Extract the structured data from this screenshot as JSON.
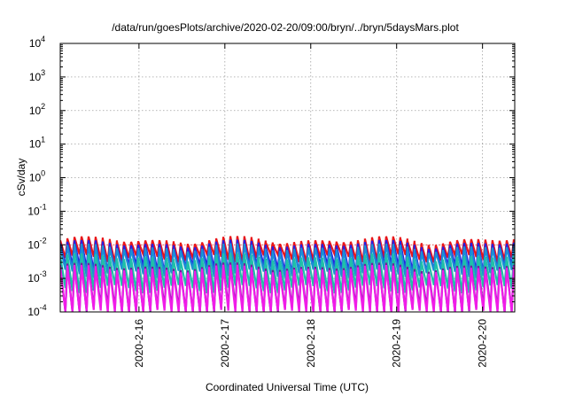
{
  "chart_data": {
    "type": "line",
    "title": "/data/run/goesPlots/archive/2020-02-20/09:00/bryn/../bryn/5daysMars.plot",
    "xlabel": "Coordinated Universal Time (UTC)",
    "ylabel": "cSv/day",
    "yscale": "log",
    "ylim": [
      0.0001,
      10000
    ],
    "y_ticks": [
      {
        "value": 0.0001,
        "base": "10",
        "exp": "-4"
      },
      {
        "value": 0.001,
        "base": "10",
        "exp": "-3"
      },
      {
        "value": 0.01,
        "base": "10",
        "exp": "-2"
      },
      {
        "value": 0.1,
        "base": "10",
        "exp": "-1"
      },
      {
        "value": 1,
        "base": "10",
        "exp": "0"
      },
      {
        "value": 10,
        "base": "10",
        "exp": "1"
      },
      {
        "value": 100,
        "base": "10",
        "exp": "2"
      },
      {
        "value": 1000,
        "base": "10",
        "exp": "3"
      },
      {
        "value": 10000,
        "base": "10",
        "exp": "4"
      }
    ],
    "xlim": [
      "2020-02-15 02:00",
      "2020-02-20 09:00"
    ],
    "x_ticks": [
      "2020-2-16",
      "2020-2-17",
      "2020-2-18",
      "2020-2-19",
      "2020-2-20"
    ],
    "grid": true,
    "reference_line": {
      "value": 0.01,
      "color": "#e8211f"
    },
    "sawtooth_period_hours": 1.98,
    "series": [
      {
        "color": "#e8161a",
        "peak": 0.0135,
        "trough": 0.0045
      },
      {
        "color": "#2a1ee0",
        "peak": 0.0105,
        "trough": 0.0021
      },
      {
        "color": "#1a8fd6",
        "peak": 0.0082,
        "trough": 0.0016
      },
      {
        "color": "#20c0a8",
        "peak": 0.0042,
        "trough": 0.00055
      },
      {
        "color": "#7020a0",
        "peak": 0.0022,
        "trough": 0.00012
      },
      {
        "color": "#f01ce8",
        "peak": 0.0019,
        "trough": 0.0001
      }
    ]
  }
}
